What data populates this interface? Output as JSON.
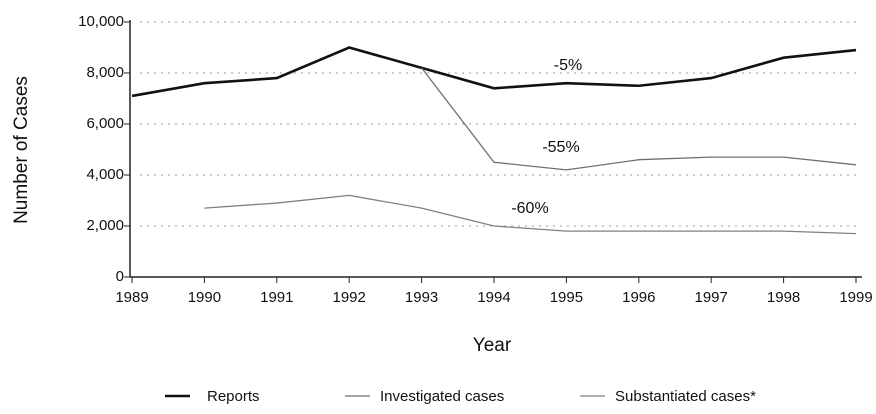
{
  "chart_data": {
    "type": "line",
    "x": [
      1989,
      1990,
      1991,
      1992,
      1993,
      1994,
      1995,
      1996,
      1997,
      1998,
      1999
    ],
    "series": [
      {
        "name": "Reports",
        "color": "#111111",
        "values": [
          7100,
          7600,
          7800,
          9000,
          8200,
          7400,
          7600,
          7500,
          7800,
          8600,
          8900
        ]
      },
      {
        "name": "Investigated cases",
        "color": "#707070",
        "values": [
          null,
          null,
          null,
          null,
          8200,
          4500,
          4200,
          4600,
          4700,
          4700,
          4400
        ]
      },
      {
        "name": "Substantiated cases*",
        "color": "#808080",
        "values": [
          null,
          2700,
          2900,
          3200,
          2700,
          2000,
          1800,
          1800,
          1800,
          1800,
          1700
        ]
      }
    ],
    "xlabel": "Year",
    "ylabel": "Number of Cases",
    "xlim": [
      1989,
      1999
    ],
    "xticks": [
      1989,
      1990,
      1991,
      1992,
      1993,
      1994,
      1995,
      1996,
      1997,
      1998,
      1999
    ],
    "ylim": [
      0,
      10000
    ],
    "yticks": [
      0,
      {
        "value": 2000,
        "label": "2,000"
      },
      {
        "value": 4000,
        "label": "4,000"
      },
      {
        "value": 6000,
        "label": "6,000"
      },
      {
        "value": 8000,
        "label": "8,000"
      },
      {
        "value": 10000,
        "label": "10,000"
      }
    ],
    "annotations": [
      "-5%",
      "-55%",
      "-60%"
    ],
    "grid": true,
    "legend": "bottom"
  }
}
